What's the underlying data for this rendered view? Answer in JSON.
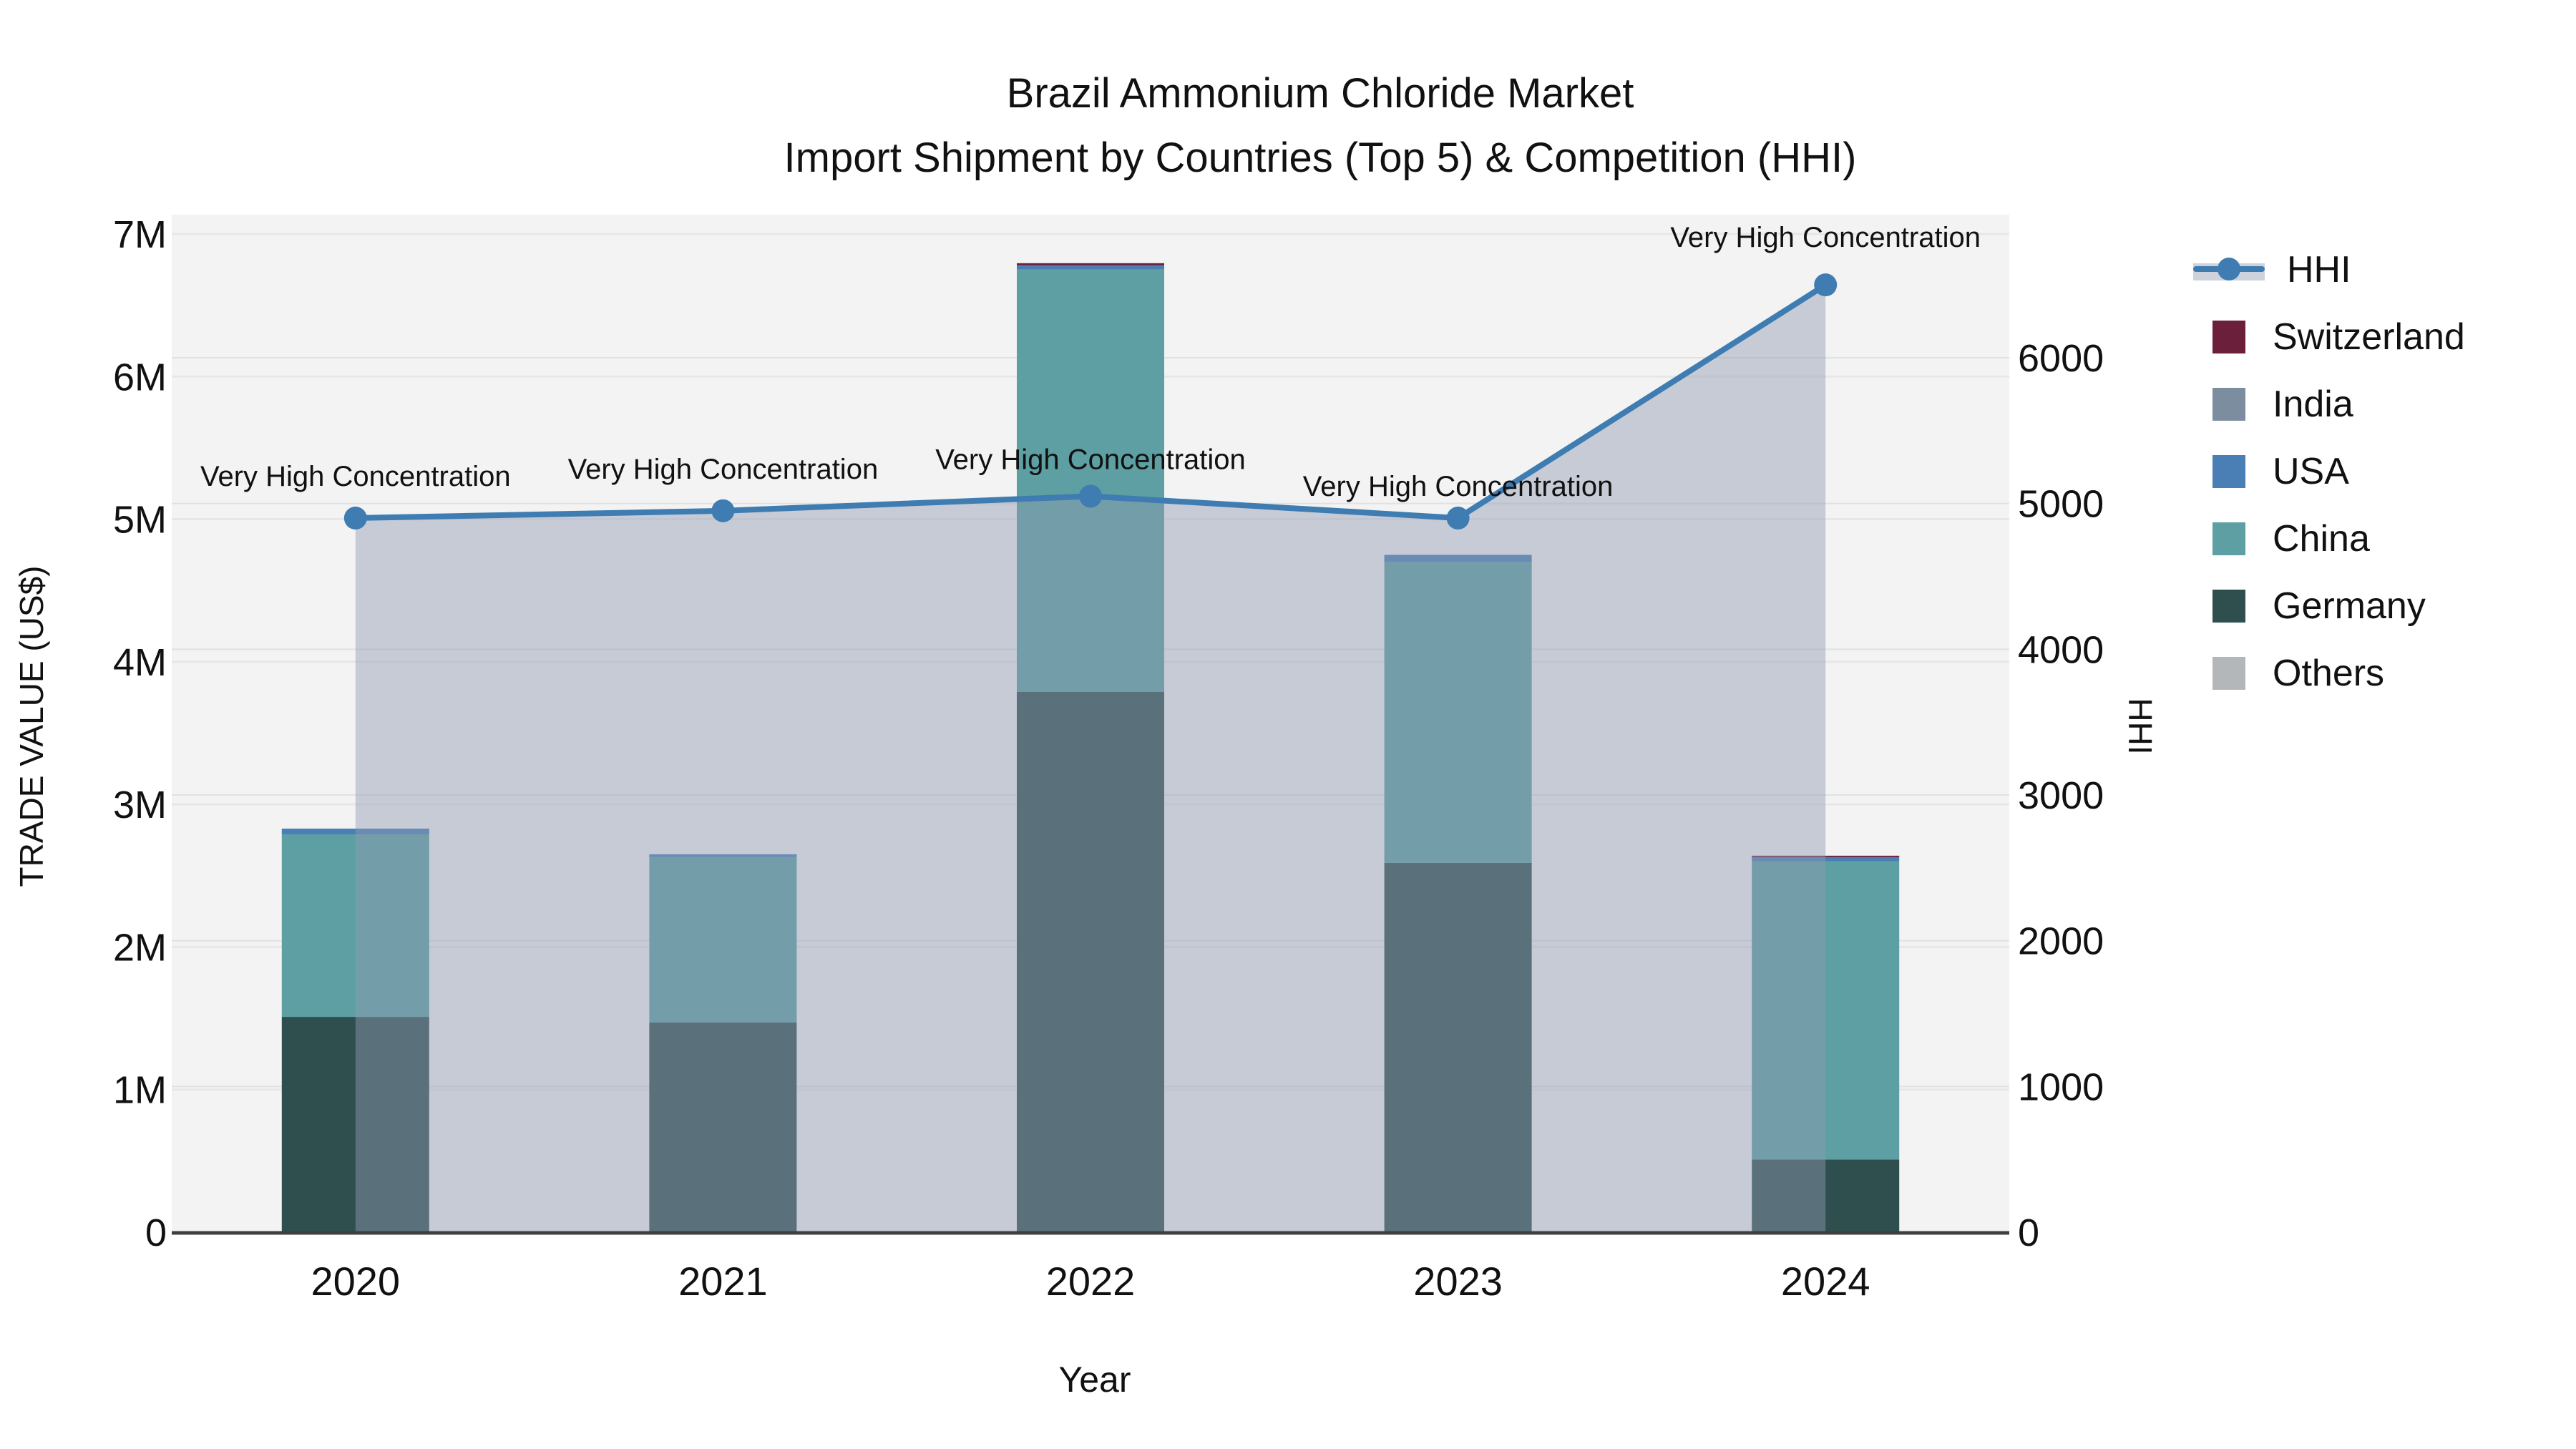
{
  "title": "Brazil Ammonium Chloride Market",
  "subtitle": "Import Shipment by Countries (Top 5) & Competition (HHI)",
  "axes": {
    "left_title": "TRADE VALUE (US$)",
    "right_title": "HHI",
    "x_title": "Year",
    "left_ticks": [
      "0",
      "1M",
      "2M",
      "3M",
      "4M",
      "5M",
      "6M",
      "7M"
    ],
    "right_ticks": [
      "0",
      "1000",
      "2000",
      "3000",
      "4000",
      "5000",
      "6000"
    ]
  },
  "legend": [
    {
      "label": "HHI",
      "type": "line",
      "color": "#3e7cb1"
    },
    {
      "label": "Switzerland",
      "type": "swatch",
      "color": "#6b1f3b"
    },
    {
      "label": "India",
      "type": "swatch",
      "color": "#7d8da0"
    },
    {
      "label": "USA",
      "type": "swatch",
      "color": "#4a7fb5"
    },
    {
      "label": "China",
      "type": "swatch",
      "color": "#5d9fa3"
    },
    {
      "label": "Germany",
      "type": "swatch",
      "color": "#2e4f4d"
    },
    {
      "label": "Others",
      "type": "swatch",
      "color": "#b4b7b9"
    }
  ],
  "colors": {
    "hhi_line": "#3e7cb1",
    "hhi_area": "rgba(144,155,180,0.45)",
    "plot_bg": "#f2f3f2",
    "axis_line": "#3f3f3f",
    "grid_major": "#e7e7e7",
    "grid_minor": "#e0e2e2",
    "text": "#111111"
  },
  "chart_data": {
    "type": "bar",
    "subtype": "stacked-bars-with-line",
    "categories": [
      "2020",
      "2021",
      "2022",
      "2023",
      "2024"
    ],
    "bar_value_unit": "million US$",
    "stack_order_bottom_to_top": [
      "Germany",
      "China",
      "USA",
      "India",
      "Switzerland",
      "Others"
    ],
    "series": [
      {
        "name": "Germany",
        "color": "#2e4f4d",
        "values": [
          1.51,
          1.47,
          3.79,
          2.59,
          0.51
        ]
      },
      {
        "name": "China",
        "color": "#5d9fa3",
        "values": [
          1.28,
          1.16,
          2.96,
          2.11,
          2.09
        ]
      },
      {
        "name": "USA",
        "color": "#4a7fb5",
        "values": [
          0.04,
          0.02,
          0.03,
          0.05,
          0.03
        ]
      },
      {
        "name": "India",
        "color": "#7d8da0",
        "values": [
          0,
          0,
          0,
          0,
          0
        ]
      },
      {
        "name": "Switzerland",
        "color": "#6b1f3b",
        "values": [
          0,
          0,
          0.015,
          0,
          0.01
        ]
      },
      {
        "name": "Others",
        "color": "#b4b7b9",
        "values": [
          0,
          0,
          0,
          0,
          0
        ]
      }
    ],
    "line_series": {
      "name": "HHI",
      "axis": "right",
      "values": [
        4900,
        4950,
        5050,
        4900,
        6500
      ]
    },
    "annotations": [
      "Very High Concentration",
      "Very High Concentration",
      "Very High Concentration",
      "Very High Concentration",
      "Very High Concentration"
    ],
    "title": "Brazil Ammonium Chloride Market",
    "subtitle": "Import Shipment by Countries (Top 5) & Competition (HHI)",
    "xlabel": "Year",
    "ylabel_left": "TRADE VALUE (US$)",
    "ylabel_right": "HHI",
    "ylim_left_millions": [
      0,
      7
    ],
    "ylim_right": [
      0,
      6980
    ],
    "grid": true,
    "legend_position": "right"
  }
}
